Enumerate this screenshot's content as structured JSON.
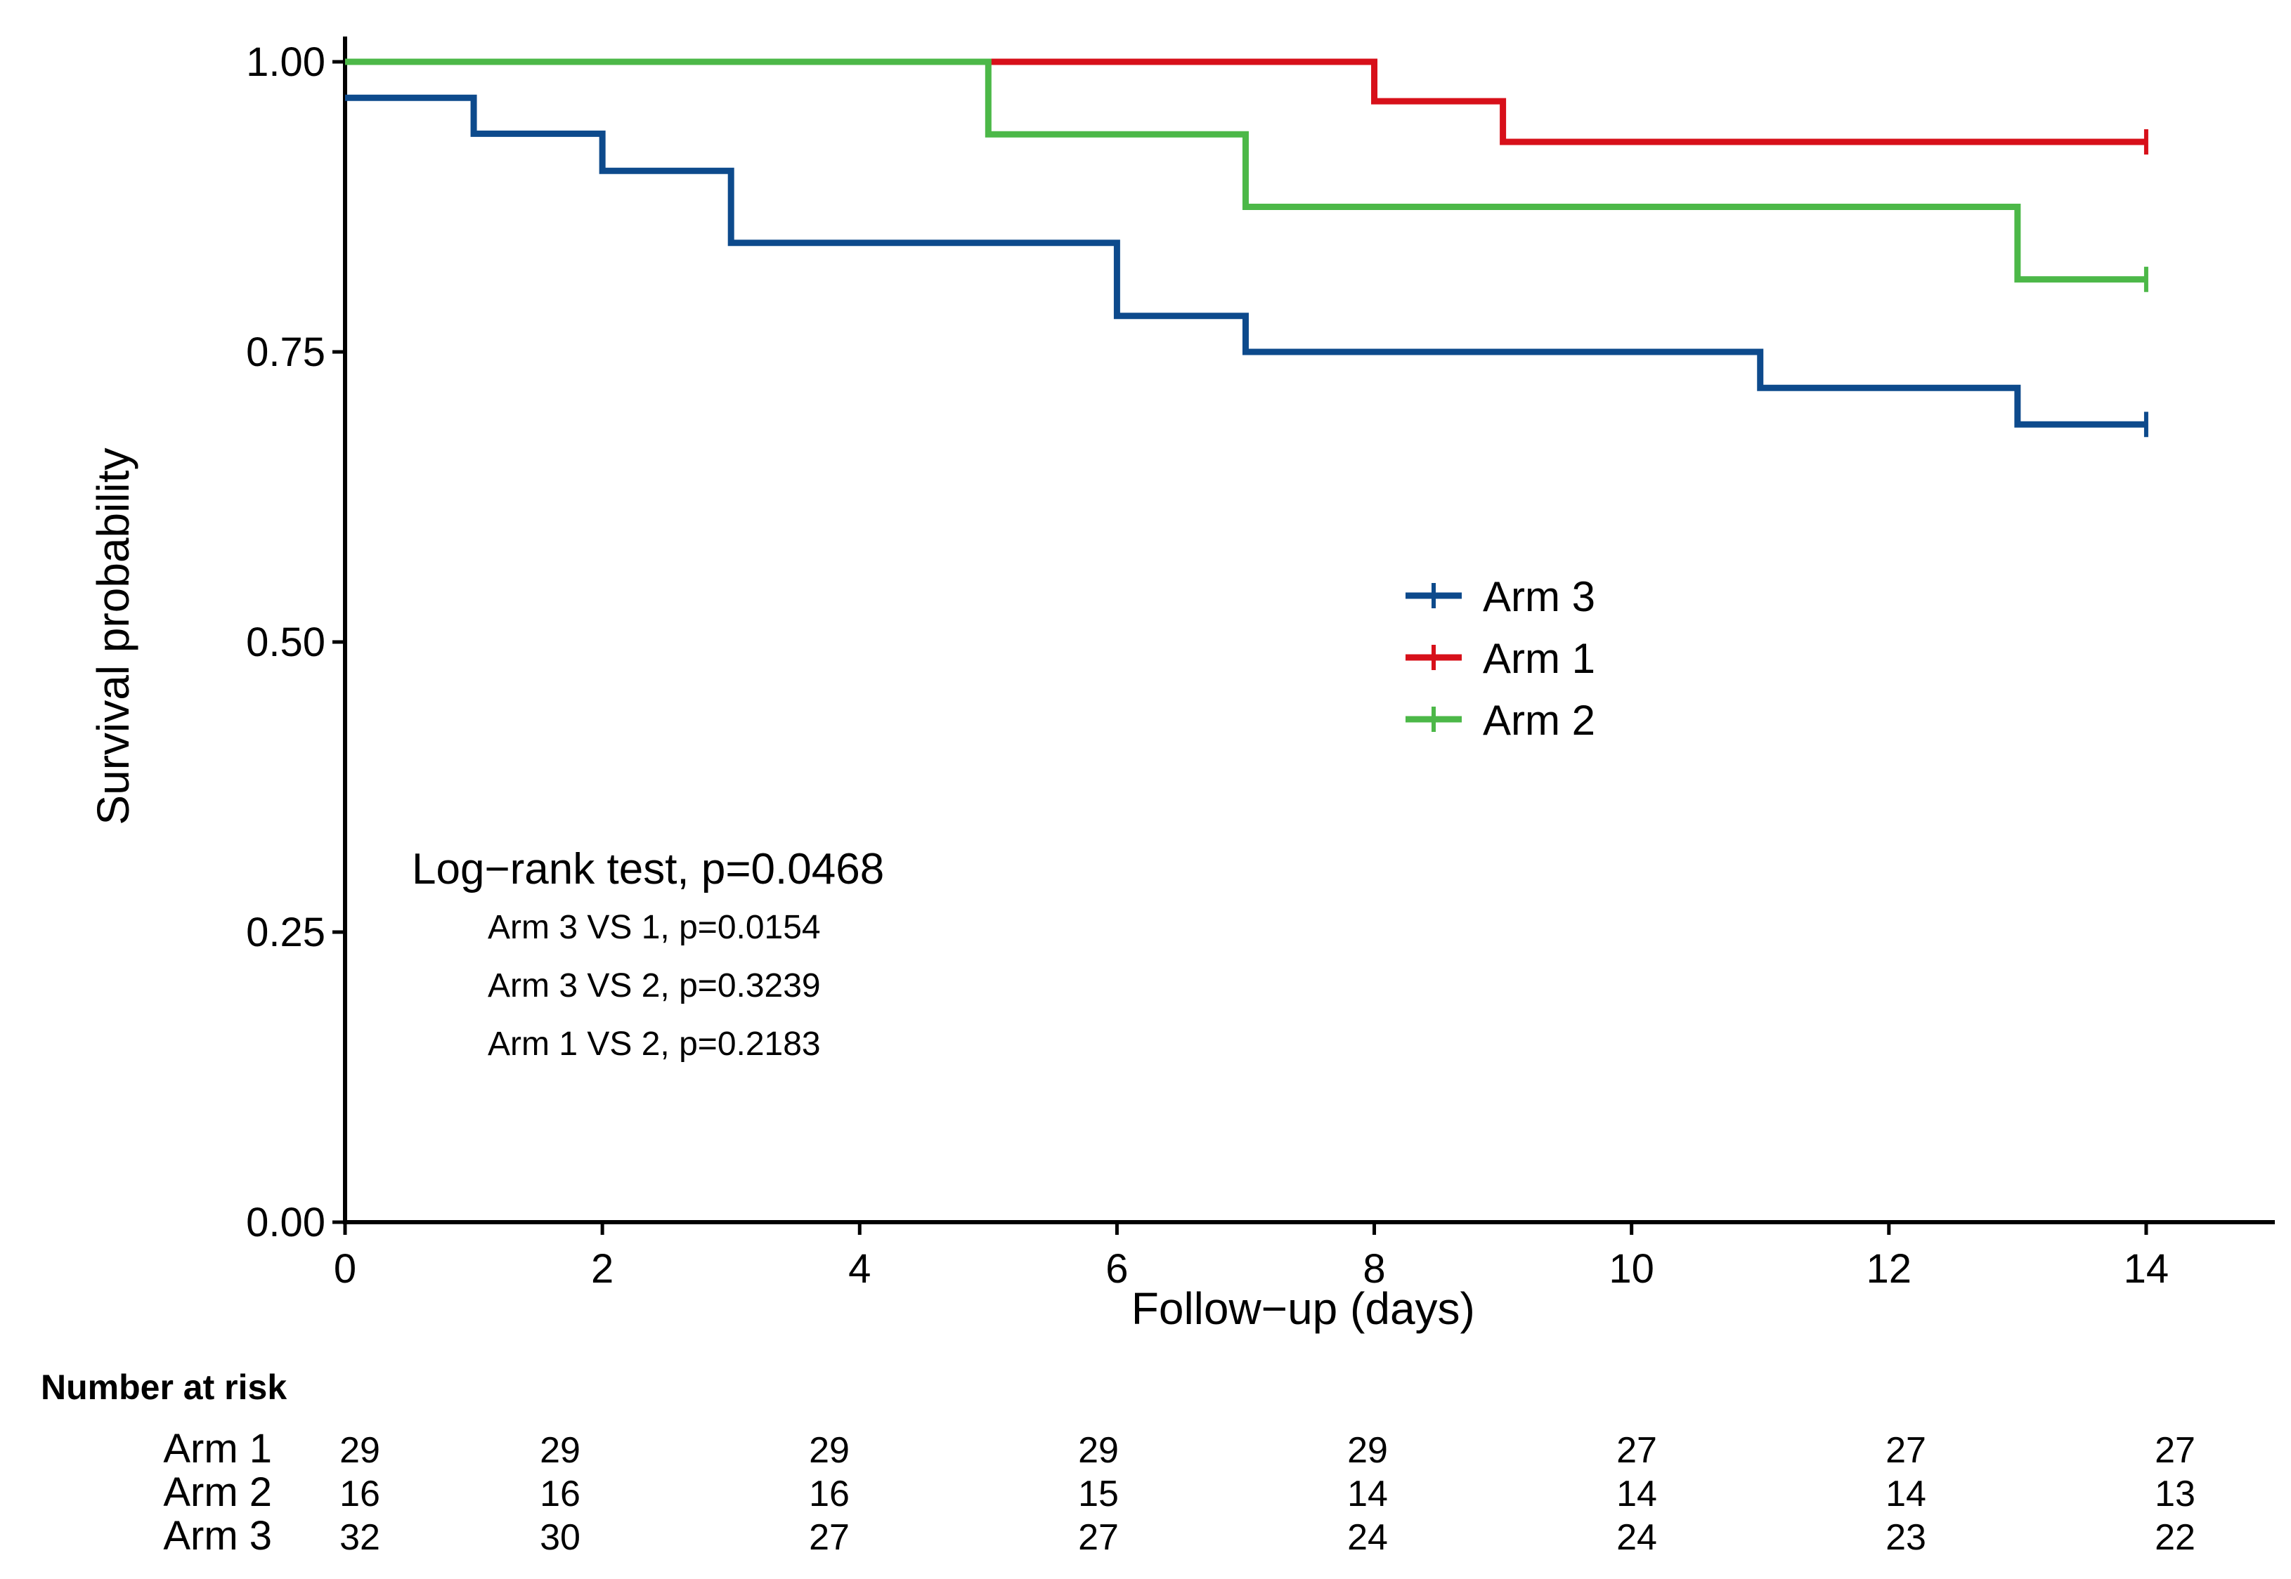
{
  "chart_data": {
    "type": "line",
    "step": true,
    "xlabel": "Follow−up (days)",
    "ylabel": "Survival probability",
    "xlim": [
      0,
      15
    ],
    "ylim": [
      0,
      1
    ],
    "x_ticks": [
      0,
      2,
      4,
      6,
      8,
      10,
      12,
      14
    ],
    "x_tick_labels": [
      "0",
      "2",
      "4",
      "6",
      "8",
      "10",
      "12",
      "14"
    ],
    "y_ticks": [
      0,
      0.25,
      0.5,
      0.75,
      1.0
    ],
    "y_tick_labels": [
      "0.00",
      "0.25",
      "0.50",
      "0.75",
      "1.00"
    ],
    "grid": false,
    "series": [
      {
        "name": "Arm 3",
        "color": "#0D4A8C",
        "points": [
          [
            0,
            0.969
          ],
          [
            1,
            0.938
          ],
          [
            2,
            0.906
          ],
          [
            3,
            0.844
          ],
          [
            6,
            0.781
          ],
          [
            7,
            0.75
          ],
          [
            11,
            0.719
          ],
          [
            13,
            0.6875
          ]
        ],
        "end_x": 14,
        "censor_x": [
          14
        ]
      },
      {
        "name": "Arm 1",
        "color": "#D7101A",
        "points": [
          [
            0,
            1.0
          ],
          [
            8,
            0.966
          ],
          [
            9,
            0.931
          ]
        ],
        "end_x": 14,
        "censor_x": [
          14
        ]
      },
      {
        "name": "Arm 2",
        "color": "#4CB848",
        "points": [
          [
            0,
            1.0
          ],
          [
            5,
            0.9375
          ],
          [
            7,
            0.875
          ],
          [
            13,
            0.8125
          ]
        ],
        "end_x": 14,
        "censor_x": [
          14
        ]
      }
    ],
    "legend": {
      "position": "center-right",
      "entries": [
        "Arm 3",
        "Arm 1",
        "Arm 2"
      ]
    },
    "annotations": {
      "title": "Log−rank test, p=0.0468",
      "lines": [
        "Arm 3 VS 1, p=0.0154",
        "Arm 3 VS 2, p=0.3239",
        "Arm 1 VS 2, p=0.2183"
      ]
    },
    "risk_table": {
      "title": "Number at risk",
      "times": [
        0,
        2,
        4,
        6,
        8,
        10,
        12,
        14
      ],
      "rows": [
        {
          "label": "Arm 1",
          "values": [
            "29",
            "29",
            "29",
            "29",
            "29",
            "27",
            "27",
            "27"
          ]
        },
        {
          "label": "Arm 2",
          "values": [
            "16",
            "16",
            "16",
            "15",
            "14",
            "14",
            "14",
            "13"
          ]
        },
        {
          "label": "Arm 3",
          "values": [
            "32",
            "30",
            "27",
            "27",
            "24",
            "24",
            "23",
            "22"
          ]
        }
      ]
    }
  }
}
